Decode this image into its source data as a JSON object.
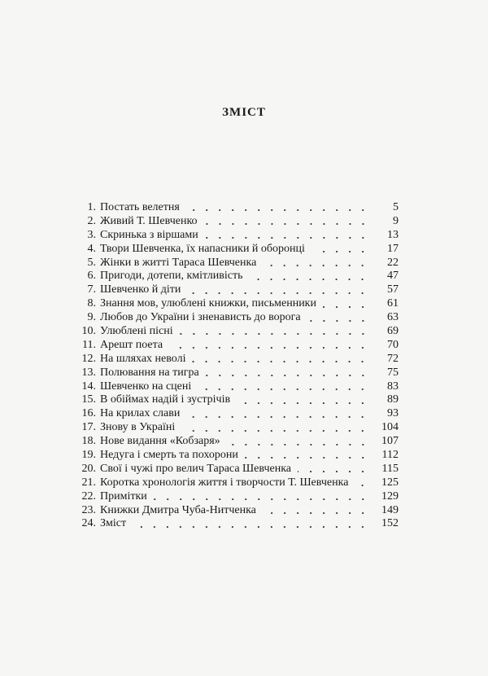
{
  "title": "ЗМІСТ",
  "entries": [
    {
      "num": "1.",
      "text": "Постать велетня",
      "page": "5"
    },
    {
      "num": "2.",
      "text": "Живий Т. Шевченко",
      "page": "9"
    },
    {
      "num": "3.",
      "text": "Скринька з віршами",
      "page": "13"
    },
    {
      "num": "4.",
      "text": "Твори Шевченка, їх напасники й оборонці",
      "page": "17"
    },
    {
      "num": "5.",
      "text": "Жінки в житті Тараса Шевченка",
      "page": "22"
    },
    {
      "num": "6.",
      "text": "Пригоди, дотепи, кмітливість",
      "page": "47"
    },
    {
      "num": "7.",
      "text": "Шевченко й діти",
      "page": "57"
    },
    {
      "num": "8.",
      "text": "Знання мов, улюблені книжки, письменники",
      "page": "61"
    },
    {
      "num": "9.",
      "text": "Любов до України і зненависть до ворога",
      "page": "63"
    },
    {
      "num": "10.",
      "text": "Улюблені пісні",
      "page": "69"
    },
    {
      "num": "11.",
      "text": "Арешт поета",
      "page": "70"
    },
    {
      "num": "12.",
      "text": "На шляхах неволі",
      "page": "72"
    },
    {
      "num": "13.",
      "text": "Полювання на тигра",
      "page": "75"
    },
    {
      "num": "14.",
      "text": "Шевченко на сцені",
      "page": "83"
    },
    {
      "num": "15.",
      "text": "В обіймах надій і зустрічів",
      "page": "89"
    },
    {
      "num": "16.",
      "text": "На крилах слави",
      "page": "93"
    },
    {
      "num": "17.",
      "text": "Знову в Україні",
      "page": "104"
    },
    {
      "num": "18.",
      "text": "Нове видання «Кобзаря»",
      "page": "107"
    },
    {
      "num": "19.",
      "text": "Недуга і смерть та похорони",
      "page": "112"
    },
    {
      "num": "20.",
      "text": "Свої і чужі про велич Тараса Шевченка",
      "page": "115"
    },
    {
      "num": "21.",
      "text": "Коротка хронологія життя і творчости Т. Шевченка",
      "page": "125"
    },
    {
      "num": "22.",
      "text": "Примітки",
      "page": "129"
    },
    {
      "num": "23.",
      "text": "Книжки Дмитра Чуба-Нитченка",
      "page": "149"
    },
    {
      "num": "24.",
      "text": "Зміст",
      "page": "152"
    }
  ]
}
